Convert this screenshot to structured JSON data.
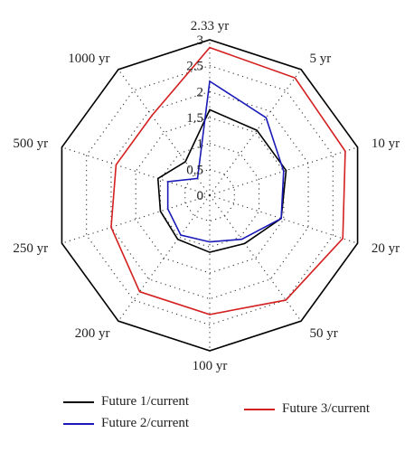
{
  "chart_data": {
    "type": "radar",
    "categories": [
      "2.33 yr",
      "5 yr",
      "10 yr",
      "20 yr",
      "50 yr",
      "100 yr",
      "200 yr",
      "250 yr",
      "500 yr",
      "1000 yr"
    ],
    "radial_ticks": [
      "0",
      "0.5",
      "1",
      "1.5",
      "2",
      "2.5",
      "3"
    ],
    "rlim": [
      0,
      3
    ],
    "grid": true,
    "legend_position": "bottom",
    "series": [
      {
        "name": "Future 1/current",
        "color": "#000000",
        "values": [
          1.65,
          1.55,
          1.55,
          1.45,
          1.15,
          1.1,
          1.05,
          1.0,
          1.05,
          0.8
        ]
      },
      {
        "name": "Future 2/current",
        "color": "#1a1ab8",
        "values": [
          2.2,
          1.85,
          1.5,
          1.45,
          1.05,
          0.9,
          0.95,
          0.85,
          0.85,
          0.4
        ]
      },
      {
        "name": "Future 3/current",
        "color": "#d42020",
        "values": [
          2.85,
          2.8,
          2.75,
          2.7,
          2.5,
          2.3,
          2.3,
          2.0,
          1.9,
          1.9
        ]
      }
    ]
  }
}
